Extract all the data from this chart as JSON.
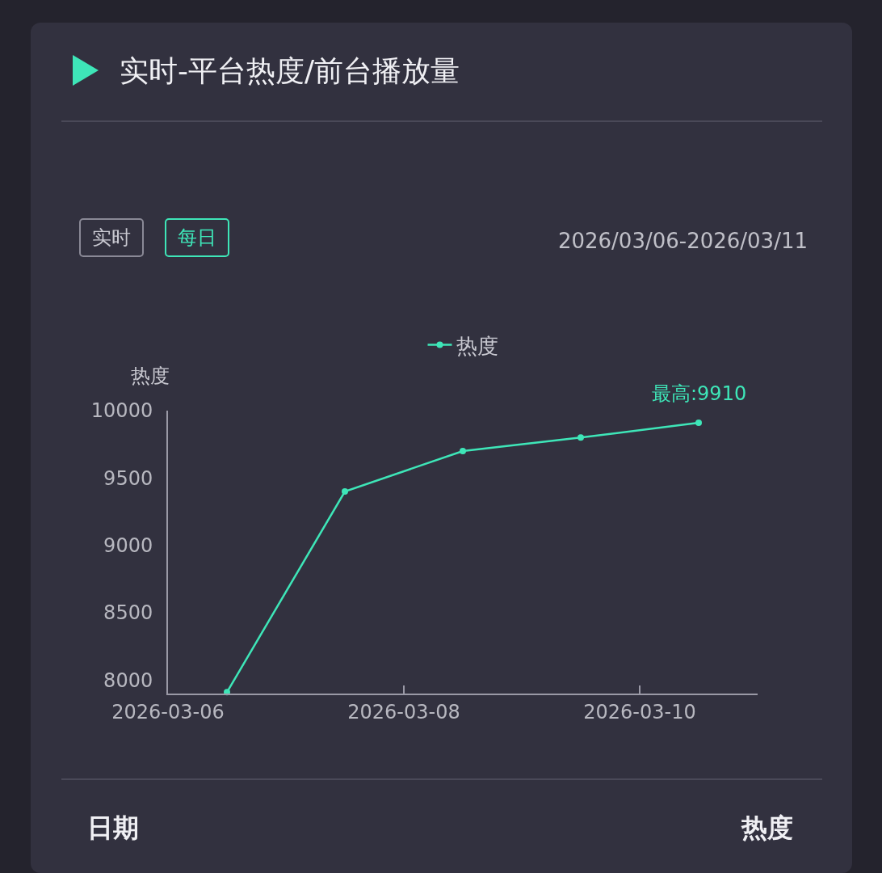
{
  "chart_data": {
    "type": "line",
    "title": "实时-平台热度/前台播放量",
    "annotations": [
      "实时",
      "每日",
      "2026/03/06-2026/03/11",
      "日期",
      "热度",
      {
        "text": "最高:9910",
        "x": "2026-03-10T12:00",
        "y": 9910
      }
    ],
    "ylabel": "热度",
    "x": [
      "2026-03-06T12:00",
      "2026-03-07T12:00",
      "2026-03-08T12:00",
      "2026-03-09T12:00",
      "2026-03-10T12:00"
    ],
    "series": [
      {
        "name": "热度",
        "color": "#3ee6b8",
        "values": [
          7910,
          9400,
          9700,
          9800,
          9910
        ]
      }
    ],
    "xlim": [
      "2026-03-06",
      "2026-03-11"
    ],
    "xticks": [
      "2026-03-06",
      "2026-03-08",
      "2026-03-10"
    ],
    "ylim": [
      7900,
      10000
    ],
    "yticks": [
      8000,
      8500,
      9000,
      9500,
      10000
    ],
    "grid": false,
    "legend": "top",
    "marker": "circle",
    "line_style": "solid"
  }
}
